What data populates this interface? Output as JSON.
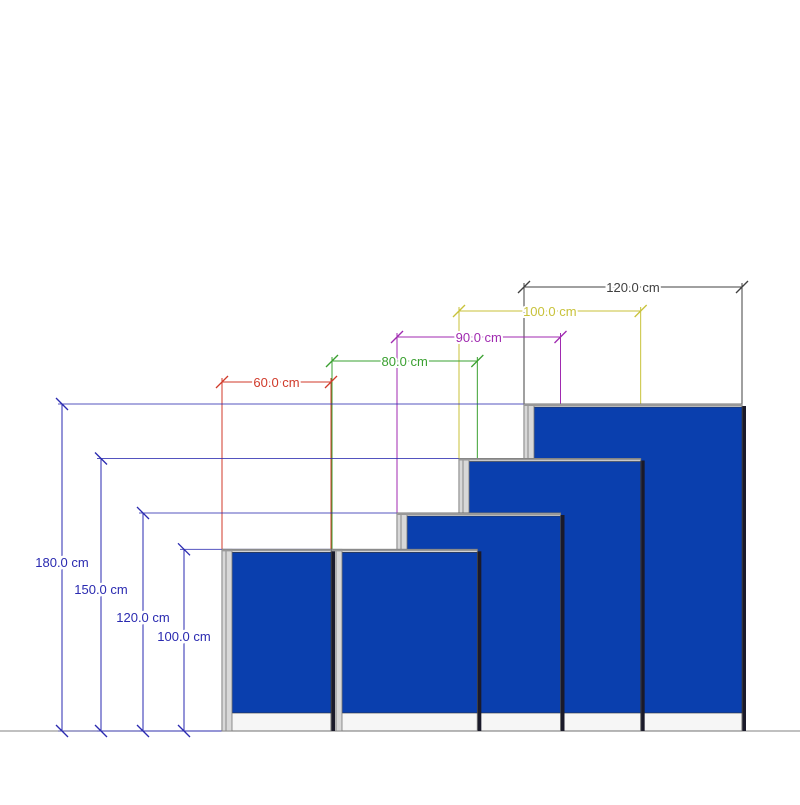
{
  "panels": [
    {
      "width_cm": 120,
      "height_cm": 180,
      "width_label": "120.0 cm",
      "height_label": "180.0 cm",
      "dim_color": "#404040"
    },
    {
      "width_cm": 100,
      "height_cm": 150,
      "width_label": "100.0 cm",
      "height_label": "150.0 cm",
      "dim_color": "#c8c23a"
    },
    {
      "width_cm": 90,
      "height_cm": 120,
      "width_label": "90.0 cm",
      "height_label": "120.0 cm",
      "dim_color": "#a02ab0"
    },
    {
      "width_cm": 80,
      "height_cm": 100,
      "width_label": "80.0 cm",
      "height_label": "",
      "dim_color": "#3aa030"
    },
    {
      "width_cm": 60,
      "height_cm": 100,
      "width_label": "60.0 cm",
      "height_label": "100.0 cm",
      "dim_color": "#d03a2a"
    }
  ],
  "colors": {
    "panel_fabric": "#0a3fae",
    "frame": "#b0b0b0",
    "height_dim": "#2a2ab0",
    "ground": "#808080"
  }
}
